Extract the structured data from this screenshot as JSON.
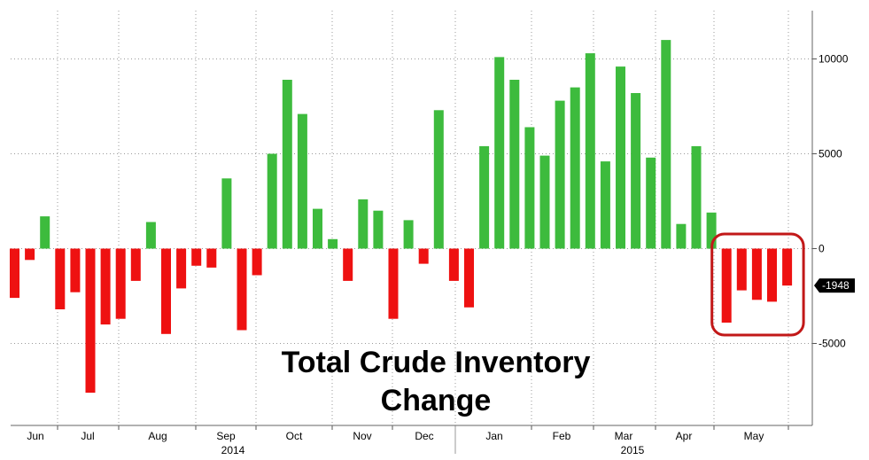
{
  "chart_data": {
    "type": "bar",
    "title": "Total Crude Inventory Change",
    "title_lines": [
      "Total Crude Inventory",
      "Change"
    ],
    "colors": {
      "positive": "#3dbb3d",
      "negative": "#ee1111",
      "callout": "#c21818",
      "last_label_bg": "#000000"
    },
    "y_axis": {
      "ticks": [
        10000,
        5000,
        0,
        -5000
      ],
      "tick_labels": [
        "10000",
        "5000",
        "0",
        "-5000"
      ],
      "ylim": [
        -9300,
        12600
      ],
      "side": "right"
    },
    "grid": true,
    "month_labels": [
      "Jun",
      "Jul",
      "Aug",
      "Sep",
      "Oct",
      "Nov",
      "Dec",
      "Jan",
      "Feb",
      "Mar",
      "Apr",
      "May"
    ],
    "year_labels": [
      "2014",
      "2015"
    ],
    "last_value_label": "-1948",
    "values": [
      -2600,
      -600,
      1700,
      -3200,
      -2300,
      -7600,
      -4000,
      -3700,
      -1700,
      1400,
      -4500,
      -2100,
      -900,
      -1000,
      3700,
      -4300,
      -1400,
      5000,
      8900,
      7100,
      2100,
      500,
      -1700,
      2600,
      2000,
      -3700,
      1500,
      -800,
      7300,
      -1700,
      -3100,
      5400,
      10100,
      8900,
      6400,
      4900,
      7800,
      8500,
      10300,
      4600,
      9600,
      8200,
      4800,
      11000,
      1300,
      5400,
      1900,
      -3900,
      -2200,
      -2700,
      -2800,
      -1948
    ],
    "highlighted_last_n": 5
  }
}
